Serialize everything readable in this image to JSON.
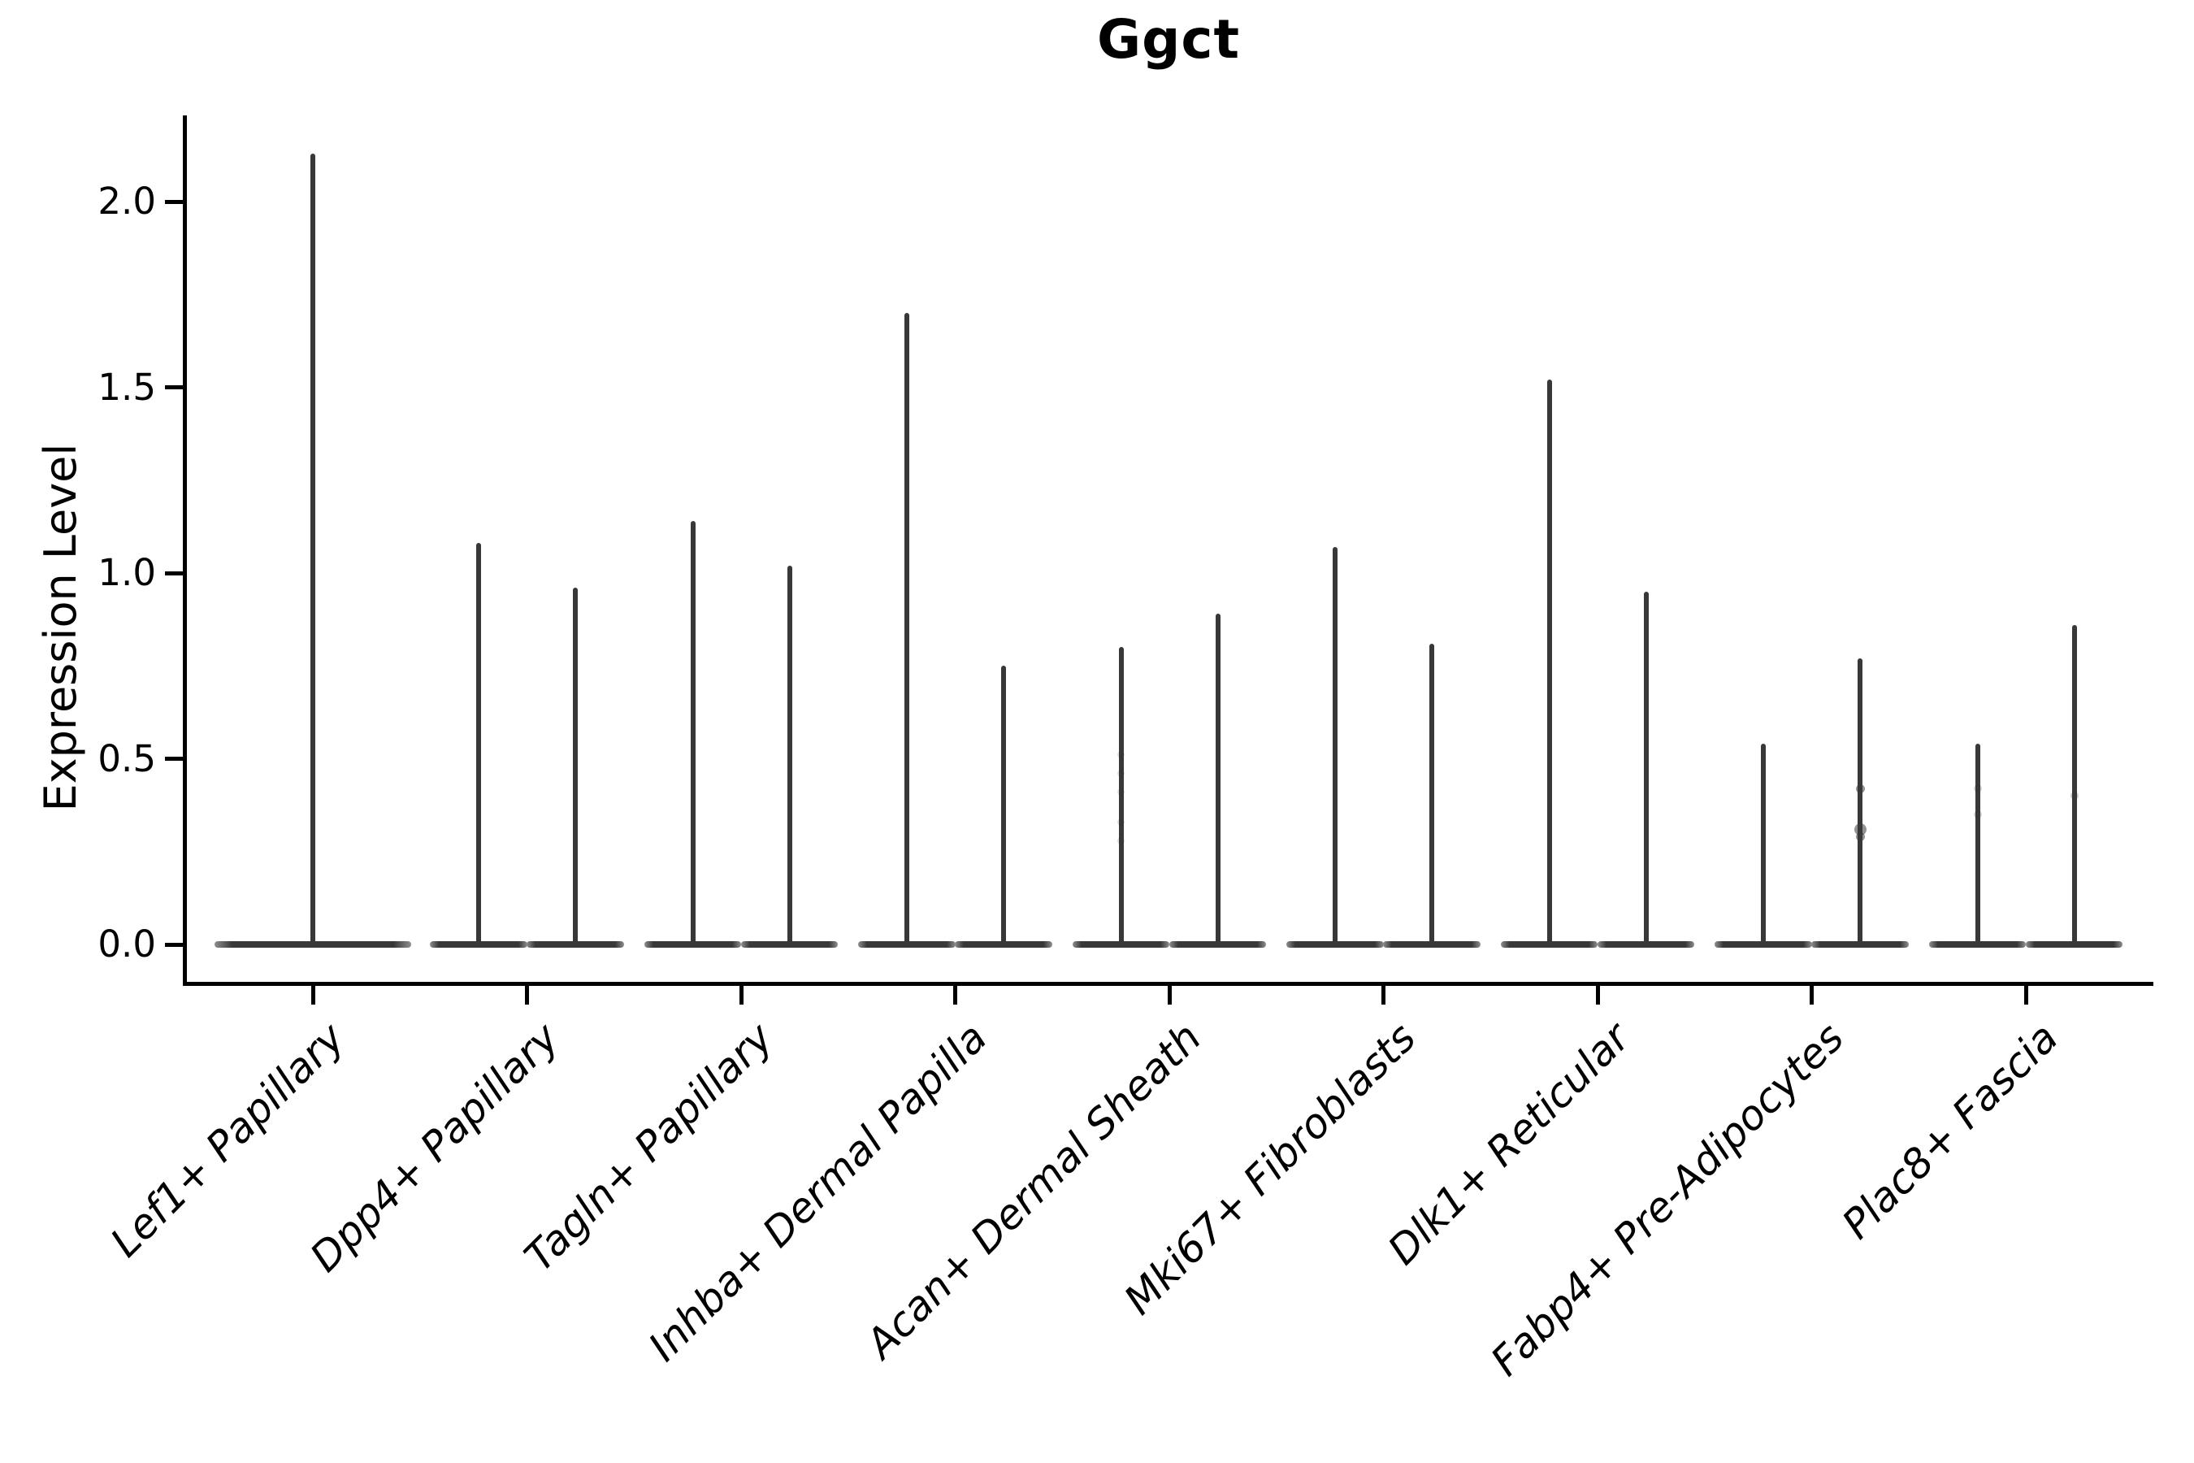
{
  "title": "Ggct",
  "chart_data": {
    "type": "violin",
    "title": "Ggct",
    "xlabel": "",
    "ylabel": "Expression Level",
    "yticks": [
      0.0,
      0.5,
      1.0,
      1.5,
      2.0
    ],
    "ytick_labels": [
      "0.0",
      "0.5",
      "1.0",
      "1.5",
      "2.0"
    ],
    "ylim": [
      -0.105,
      2.23
    ],
    "grid": false,
    "legend": "none",
    "violin_style": "zero-inflated: wide flat body at 0 with thin density spike up to max",
    "categories": [
      "Lef1+ Papillary",
      "Dpp4+ Papillary",
      "Tagln+ Papillary",
      "Inhba+ Dermal Papilla",
      "Acan+ Dermal Sheath",
      "Mki67+ Fibroblasts",
      "Dlk1+ Reticular",
      "Fabp4+ Pre-Adipocytes",
      "Plac8+ Fascia"
    ],
    "groups": [
      {
        "label": "Lef1+ Papillary",
        "spike_maxima": [
          2.13
        ]
      },
      {
        "label": "Dpp4+ Papillary",
        "spike_maxima": [
          1.08,
          0.96
        ]
      },
      {
        "label": "Tagln+ Papillary",
        "spike_maxima": [
          1.14,
          1.02
        ]
      },
      {
        "label": "Inhba+ Dermal Papilla",
        "spike_maxima": [
          1.7,
          0.75
        ]
      },
      {
        "label": "Acan+ Dermal Sheath",
        "spike_maxima": [
          0.8,
          0.89
        ]
      },
      {
        "label": "Mki67+ Fibroblasts",
        "spike_maxima": [
          1.07,
          0.81
        ]
      },
      {
        "label": "Dlk1+ Reticular",
        "spike_maxima": [
          1.52,
          0.95
        ]
      },
      {
        "label": "Fabp4+ Pre-Adipocytes",
        "spike_maxima": [
          0.54,
          0.77
        ]
      },
      {
        "label": "Plac8+ Fascia",
        "spike_maxima": [
          0.54,
          0.86
        ]
      }
    ],
    "jitter_points": [
      {
        "group_index": 7,
        "violin_index": 1,
        "values": [
          0.42,
          0.31,
          0.29
        ],
        "sizes": [
          11,
          15,
          11
        ],
        "opacity": 0.55
      },
      {
        "group_index": 8,
        "violin_index": 0,
        "values": [
          0.42,
          0.35
        ],
        "sizes": [
          10,
          10
        ],
        "opacity": 0.22
      },
      {
        "group_index": 8,
        "violin_index": 1,
        "values": [
          0.4
        ],
        "sizes": [
          10
        ],
        "opacity": 0.25
      },
      {
        "group_index": 4,
        "violin_index": 0,
        "values": [
          0.51,
          0.46,
          0.41,
          0.33,
          0.28
        ],
        "sizes": [
          9,
          9,
          9,
          9,
          9
        ],
        "opacity": 0.15
      }
    ],
    "colors": {
      "violin": "#383838",
      "violin_tip": "#8f8f8f",
      "axis": "#000000",
      "background": "#ffffff",
      "text": "#000000"
    }
  }
}
